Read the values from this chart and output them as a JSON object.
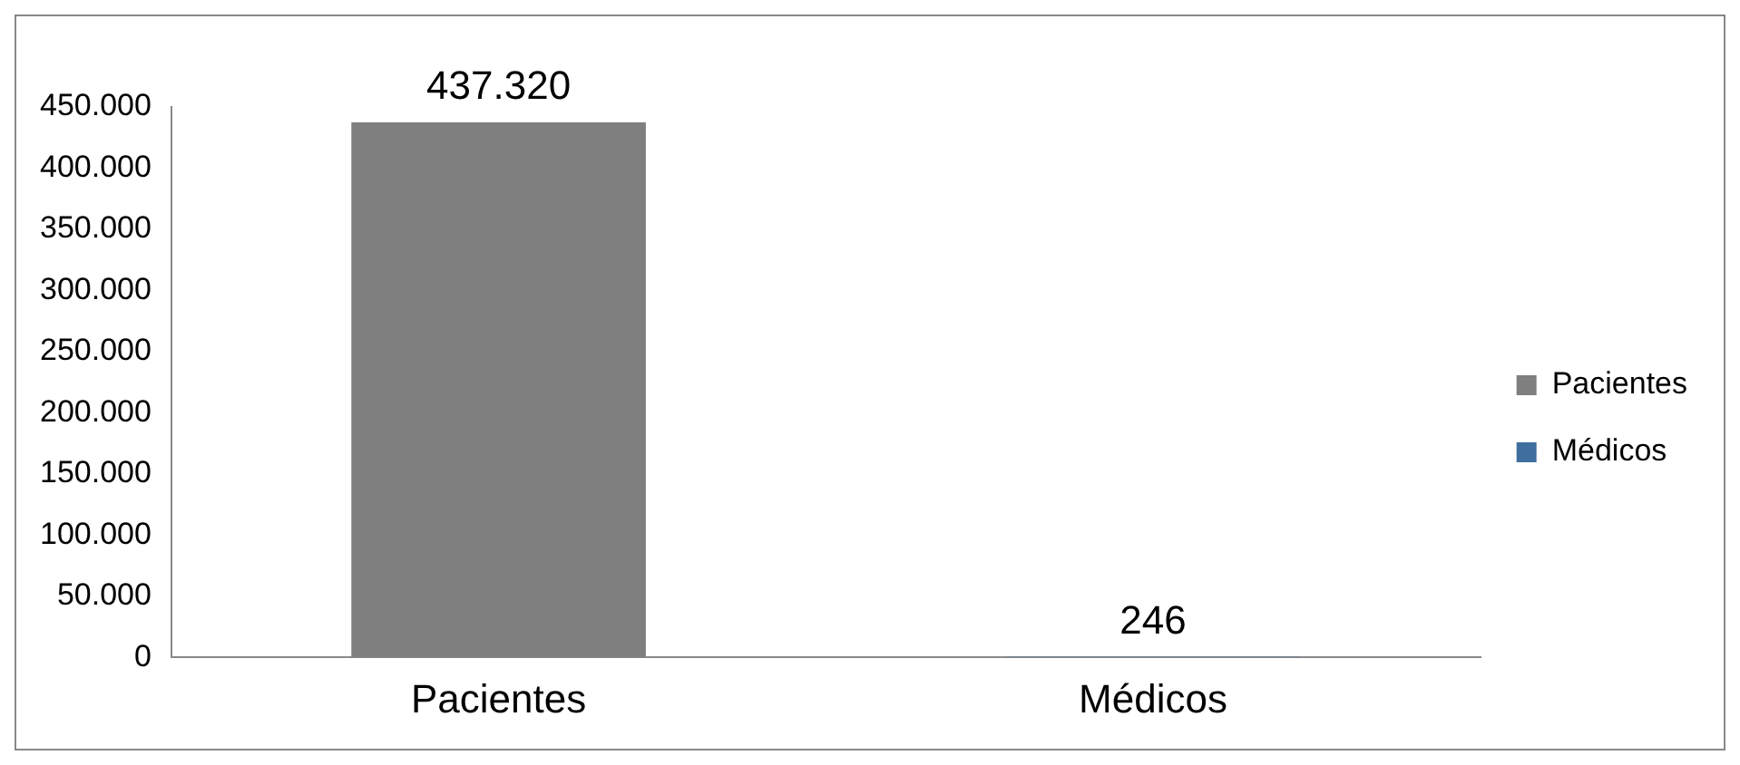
{
  "chart_data": {
    "type": "bar",
    "categories": [
      "Pacientes",
      "Médicos"
    ],
    "series": [
      {
        "name": "Pacientes",
        "color": "#7f7f7f",
        "values": [
          437320,
          null
        ],
        "value_labels": [
          "437.320",
          null
        ]
      },
      {
        "name": "Médicos",
        "color": "#3f6f9f",
        "values": [
          null,
          246
        ],
        "value_labels": [
          null,
          "246"
        ]
      }
    ],
    "ylim": [
      0,
      450000
    ],
    "yticks": [
      {
        "value": 0,
        "label": "0"
      },
      {
        "value": 50000,
        "label": "50.000"
      },
      {
        "value": 100000,
        "label": "100.000"
      },
      {
        "value": 150000,
        "label": "150.000"
      },
      {
        "value": 200000,
        "label": "200.000"
      },
      {
        "value": 250000,
        "label": "250.000"
      },
      {
        "value": 300000,
        "label": "300.000"
      },
      {
        "value": 350000,
        "label": "350.000"
      },
      {
        "value": 400000,
        "label": "400.000"
      },
      {
        "value": 450000,
        "label": "450.000"
      }
    ],
    "grid": false,
    "legend": "right"
  }
}
